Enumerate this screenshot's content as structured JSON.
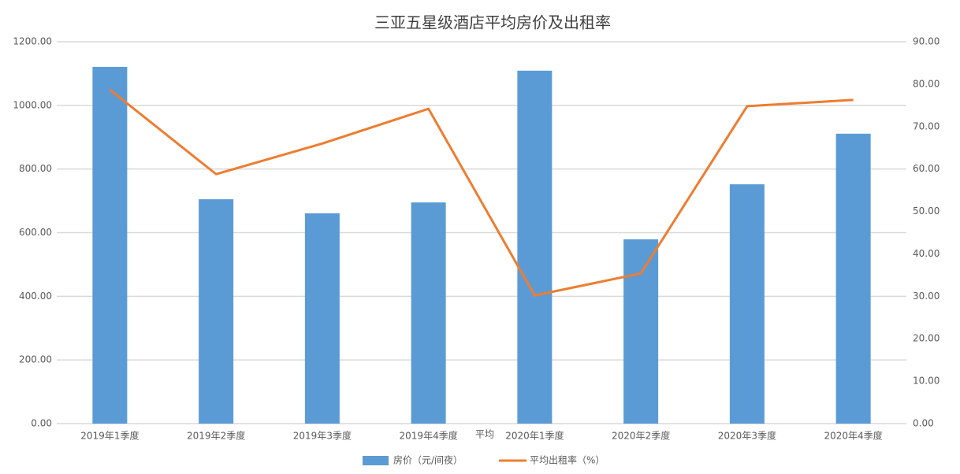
{
  "chart_data": {
    "type": "bar-line",
    "title": "三亚五星级酒店平均房价及出租率",
    "categories": [
      "2019年1季度",
      "2019年2季度",
      "2019年3季度",
      "2019年4季度",
      "2020年1季度",
      "2020年2季度",
      "2020年3季度",
      "2020年4季度"
    ],
    "series": [
      {
        "name": "房价（元/间夜）",
        "color": "#5b9bd5",
        "type": "bar",
        "values": [
          1121,
          705,
          661,
          695,
          1109,
          579,
          752,
          911
        ]
      },
      {
        "name": "平均出租率（%）",
        "color": "#ed7d31",
        "type": "line",
        "axis": "y2",
        "values": [
          78.7,
          58.8,
          66.0,
          74.2,
          30.2,
          35.4,
          74.8,
          76.3
        ]
      }
    ],
    "annotation": "平均",
    "ylim": [
      0,
      1200
    ],
    "yticks": [
      {
        "value": 0,
        "label": "0.00"
      },
      {
        "value": 200,
        "label": "200.00"
      },
      {
        "value": 400,
        "label": "400.00"
      },
      {
        "value": 600,
        "label": "600.00"
      },
      {
        "value": 800,
        "label": "800.00"
      },
      {
        "value": 1000,
        "label": "1000.00"
      },
      {
        "value": 1200,
        "label": "1200.00"
      }
    ],
    "y2lim": [
      0,
      90
    ],
    "y2ticks": [
      {
        "value": 0,
        "label": "0.00"
      },
      {
        "value": 10,
        "label": "10.00"
      },
      {
        "value": 20,
        "label": "20.00"
      },
      {
        "value": 30,
        "label": "30.00"
      },
      {
        "value": 40,
        "label": "40.00"
      },
      {
        "value": 50,
        "label": "50.00"
      },
      {
        "value": 60,
        "label": "60.00"
      },
      {
        "value": 70,
        "label": "70.00"
      },
      {
        "value": 80,
        "label": "80.00"
      },
      {
        "value": 90,
        "label": "90.00"
      }
    ],
    "grid": true
  }
}
